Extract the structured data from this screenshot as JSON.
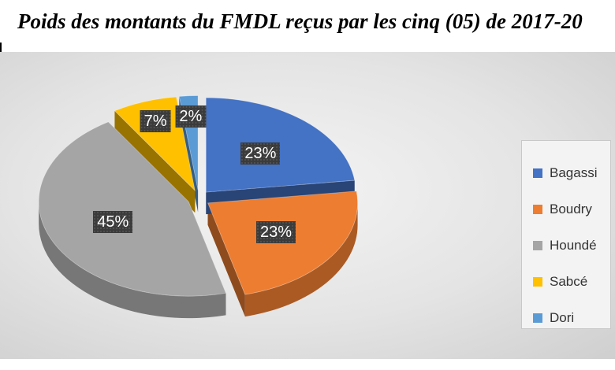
{
  "title": "Poids des montants du FMDL reçus par les cinq (05) de 2017-20",
  "chart_data": {
    "type": "pie",
    "style": "3d-exploded",
    "categories": [
      "Bagassi",
      "Boudry",
      "Houndé",
      "Sabcé",
      "Dori"
    ],
    "values": [
      23,
      23,
      45,
      7,
      2
    ],
    "labels": [
      "23%",
      "23%",
      "45%",
      "7%",
      "2%"
    ],
    "colors": [
      "#4472C4",
      "#ED7D31",
      "#A5A5A5",
      "#FFC000",
      "#5B9BD5"
    ],
    "legend_position": "right"
  }
}
